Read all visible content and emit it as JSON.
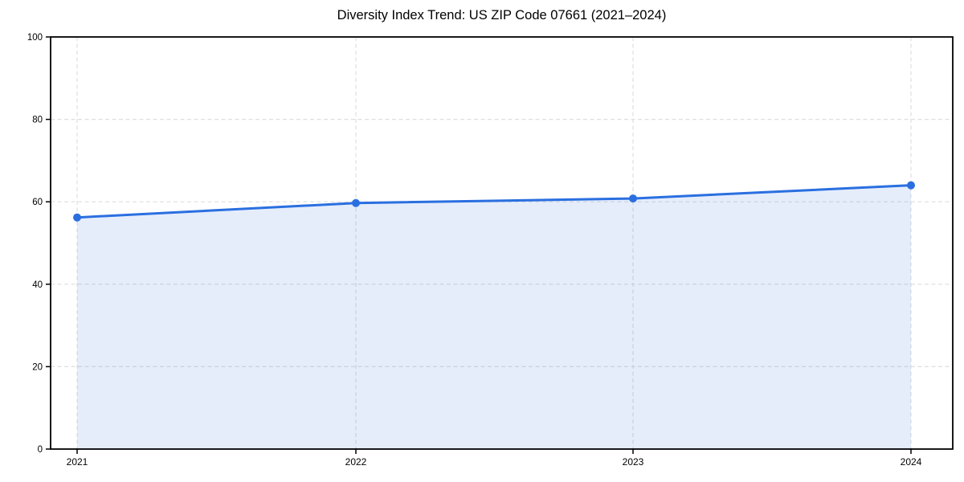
{
  "page": {
    "background_color": "#ffffff"
  },
  "chart_data": {
    "type": "line",
    "title": "Diversity Index Trend: US ZIP Code 07661 (2021–2024)",
    "categories": [
      "2021",
      "2022",
      "2023",
      "2024"
    ],
    "series": [
      {
        "name": "Diversity Index",
        "values": [
          56.2,
          59.7,
          60.8,
          64.0
        ]
      }
    ],
    "xlabel": "",
    "ylabel": "",
    "ylim": [
      0,
      100
    ],
    "yticks": [
      0,
      20,
      40,
      60,
      80,
      100
    ],
    "grid": {
      "visible": true,
      "style": "dashed",
      "color": "#dedede"
    },
    "legend_position": "none",
    "marker_style": "circle",
    "area_under_line": true,
    "colors": {
      "line": "#2a6fe0",
      "marker": "#2a6fe0",
      "area_fill": "rgba(42, 111, 224, 0.12)",
      "axis": "#000000",
      "title_text": "#000000",
      "tick_text": "#000000"
    }
  }
}
